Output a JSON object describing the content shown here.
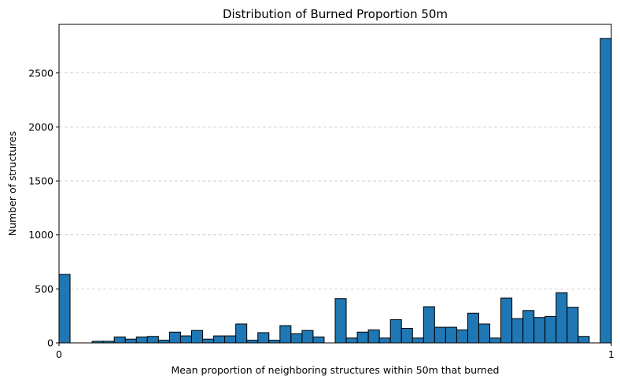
{
  "chart_data": {
    "type": "bar",
    "title": "Distribution of Burned Proportion 50m",
    "xlabel": "Mean proportion of neighboring structures within 50m that burned",
    "ylabel": "Number of structures",
    "xlim": [
      0,
      1
    ],
    "ylim": [
      0,
      2950
    ],
    "x_ticks": [
      "0",
      "1"
    ],
    "y_ticks": [
      0,
      500,
      1000,
      1500,
      2000,
      2500
    ],
    "grid": "y-dashed",
    "bar_color": "#1f77b4",
    "bin_count": 50,
    "bin_edges": [
      0,
      1
    ],
    "values": [
      635,
      0,
      0,
      15,
      15,
      55,
      35,
      55,
      60,
      25,
      100,
      65,
      115,
      35,
      65,
      65,
      175,
      25,
      95,
      25,
      160,
      85,
      115,
      55,
      0,
      410,
      45,
      100,
      120,
      45,
      215,
      135,
      45,
      335,
      145,
      145,
      120,
      275,
      175,
      45,
      415,
      225,
      300,
      235,
      245,
      465,
      330,
      60,
      0,
      2820
    ]
  }
}
